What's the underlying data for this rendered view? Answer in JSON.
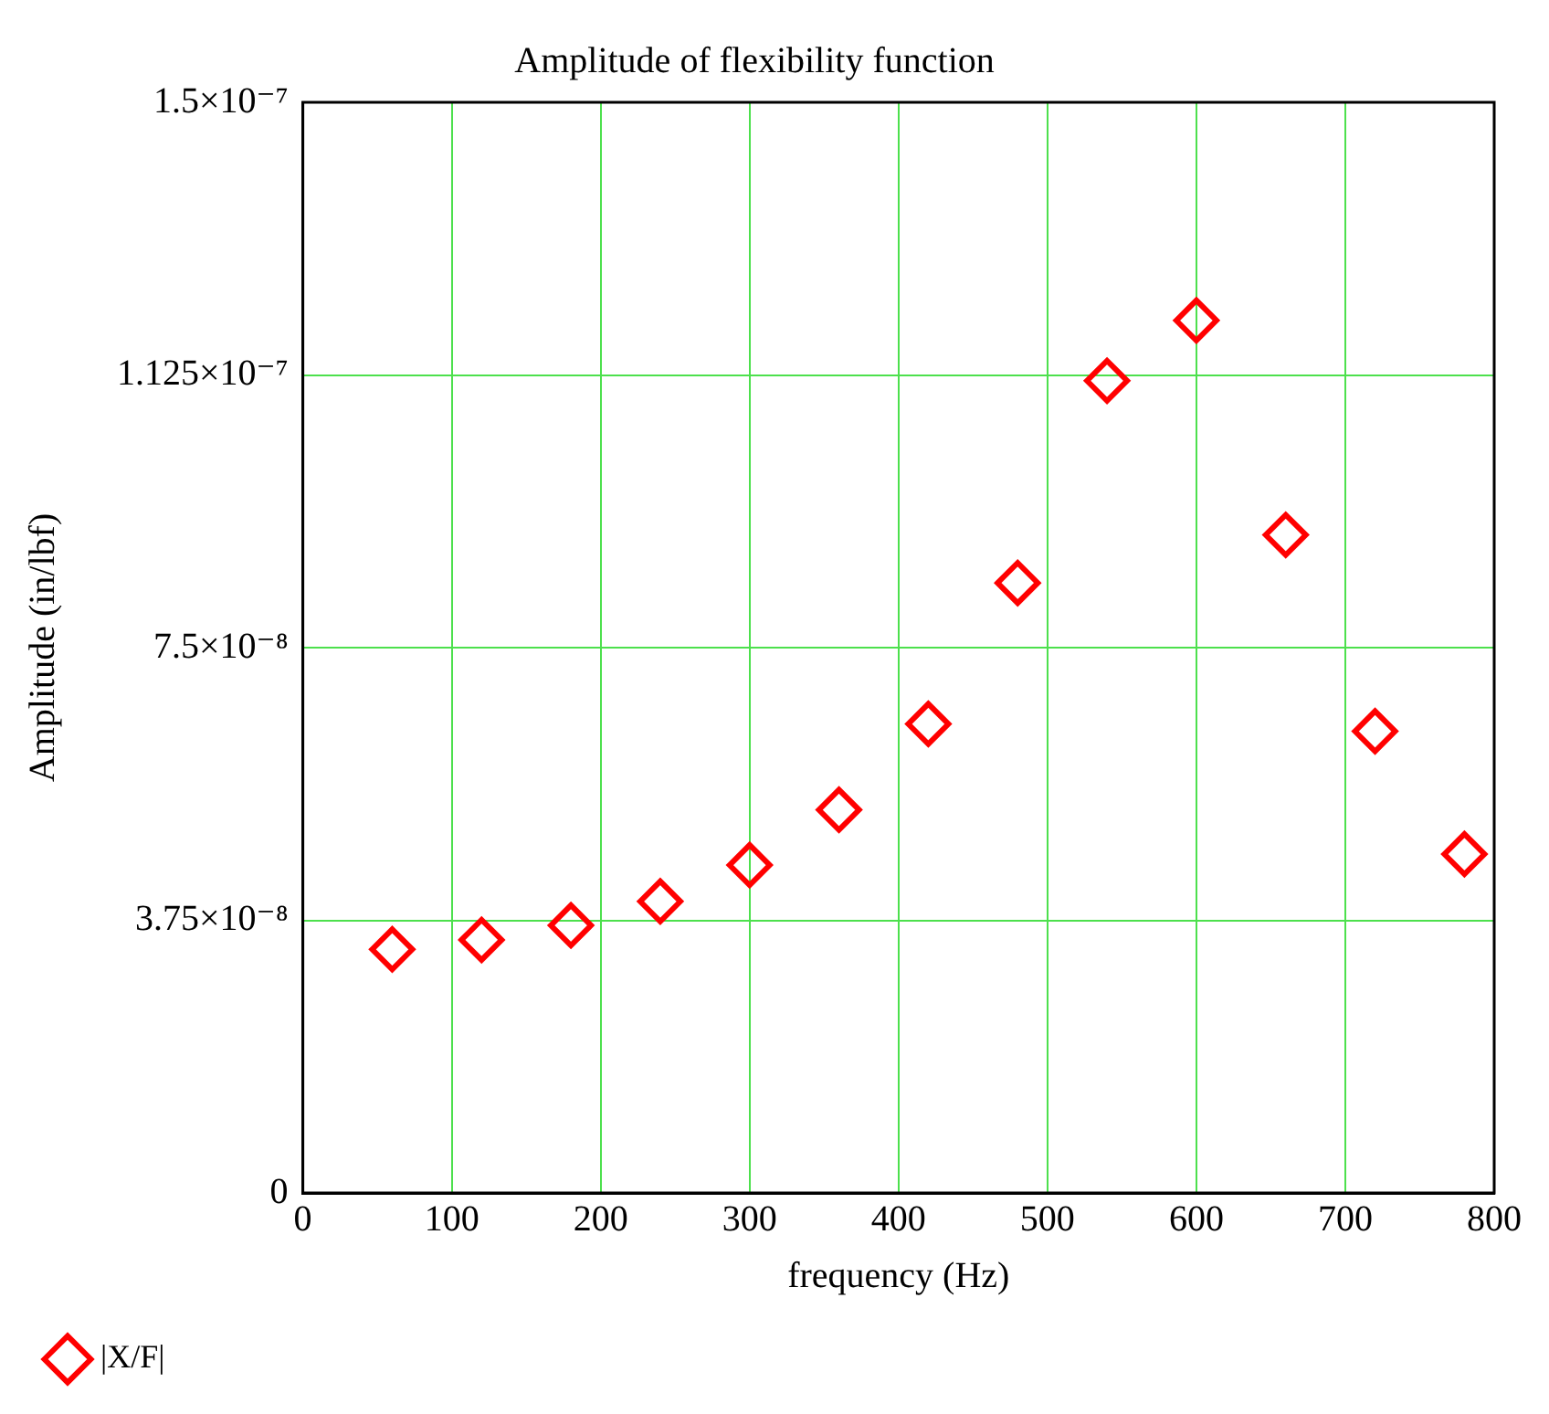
{
  "chart_data": {
    "type": "scatter",
    "title": "Amplitude of flexibility function",
    "xlabel": "frequency (Hz)",
    "ylabel": "Amplitude (in/lbf)",
    "x": [
      60,
      120,
      180,
      240,
      300,
      360,
      420,
      480,
      540,
      600,
      660,
      720,
      780
    ],
    "series": [
      {
        "name": "|X/F|",
        "color": "#ff0000",
        "values": [
          3.35e-08,
          3.48e-08,
          3.68e-08,
          4.01e-08,
          4.51e-08,
          5.27e-08,
          6.45e-08,
          8.39e-08,
          1.117e-07,
          1.2e-07,
          9.05e-08,
          6.35e-08,
          4.66e-08
        ]
      }
    ],
    "xlim": [
      0,
      800
    ],
    "xticks": [
      0,
      100,
      200,
      300,
      400,
      500,
      600,
      700,
      800
    ],
    "ylim": [
      0,
      1.5e-07
    ],
    "yticks": [
      0,
      {
        "value": 3.75e-08,
        "label": "3.75×10⁻⁸"
      },
      {
        "value": 7.5e-08,
        "label": "7.5×10⁻⁸"
      },
      {
        "value": 1.125e-07,
        "label": "1.125×10⁻⁷"
      },
      {
        "value": 1.5e-07,
        "label": "1.5×10⁻⁷"
      }
    ],
    "grid": true,
    "legend": "bottom",
    "marker": "diamond"
  }
}
